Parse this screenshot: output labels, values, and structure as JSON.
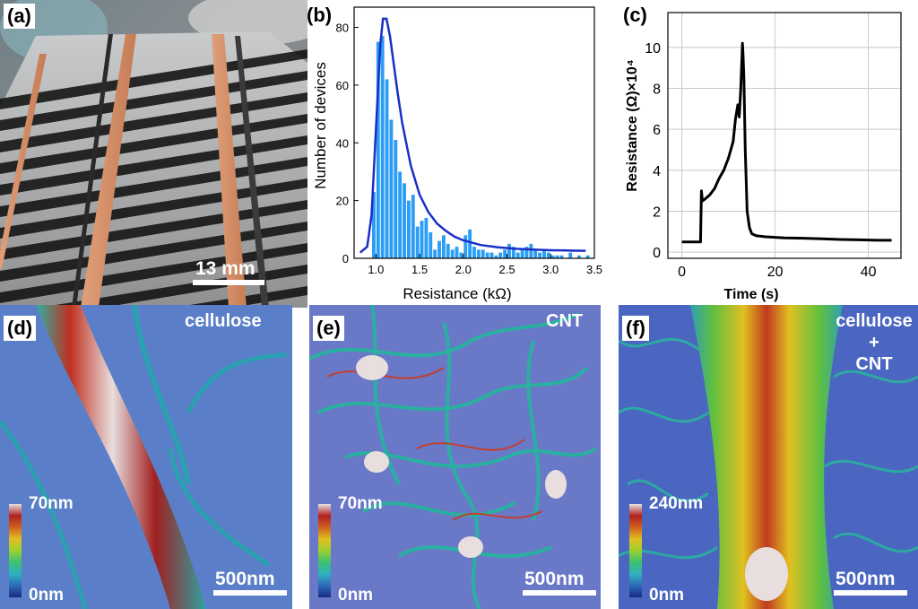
{
  "panels": {
    "a": {
      "label": "(a)",
      "scalebar": "13 mm"
    },
    "b": {
      "label": "(b)"
    },
    "c": {
      "label": "(c)"
    },
    "d": {
      "label": "(d)",
      "title": "cellulose",
      "cb_top": "70nm",
      "cb_bottom": "0nm",
      "scalebar": "500nm"
    },
    "e": {
      "label": "(e)",
      "title": "CNT",
      "cb_top": "70nm",
      "cb_bottom": "0nm",
      "scalebar": "500nm"
    },
    "f": {
      "label": "(f)",
      "title_lines": [
        "cellulose",
        "+",
        "CNT"
      ],
      "cb_top": "240nm",
      "cb_bottom": "0nm",
      "scalebar": "500nm"
    }
  },
  "chart_data": [
    {
      "type": "bar",
      "panel": "b",
      "xlabel": "Resistance (kΩ)",
      "ylabel": "Number of devices",
      "xlim": [
        0.75,
        3.5
      ],
      "ylim": [
        0,
        87
      ],
      "xticks": [
        "1.0",
        "1.5",
        "2.0",
        "2.5",
        "3.0",
        "3.5"
      ],
      "xtick_values": [
        1.0,
        1.5,
        2.0,
        2.5,
        3.0,
        3.5
      ],
      "yticks": [
        "0",
        "20",
        "40",
        "60",
        "80"
      ],
      "ytick_values": [
        0,
        20,
        40,
        60,
        80
      ],
      "bin_width": 0.05,
      "bin_starts": [
        0.95,
        1.0,
        1.05,
        1.1,
        1.15,
        1.2,
        1.25,
        1.3,
        1.35,
        1.4,
        1.45,
        1.5,
        1.55,
        1.6,
        1.65,
        1.7,
        1.75,
        1.8,
        1.85,
        1.9,
        1.95,
        2.0,
        2.05,
        2.1,
        2.15,
        2.2,
        2.25,
        2.3,
        2.35,
        2.4,
        2.45,
        2.5,
        2.55,
        2.6,
        2.65,
        2.7,
        2.75,
        2.8,
        2.85,
        2.9,
        2.95,
        3.0,
        3.05,
        3.1,
        3.15,
        3.2,
        3.25,
        3.3,
        3.35,
        3.4
      ],
      "values": [
        23,
        75,
        77,
        62,
        48,
        41,
        30,
        26,
        20,
        22,
        11,
        13,
        14,
        9,
        3,
        6,
        8,
        5,
        3,
        4,
        2,
        8,
        10,
        4,
        3,
        3,
        2,
        2,
        1,
        2,
        3,
        5,
        4,
        2,
        3,
        4,
        5,
        3,
        2,
        3,
        2,
        1,
        1,
        1,
        0,
        2,
        0,
        1,
        0,
        1
      ],
      "fit_curve": {
        "x": [
          0.82,
          0.9,
          0.95,
          1.0,
          1.05,
          1.08,
          1.12,
          1.16,
          1.2,
          1.25,
          1.3,
          1.4,
          1.5,
          1.6,
          1.7,
          1.8,
          1.9,
          2.0,
          2.2,
          2.4,
          2.6,
          2.8,
          3.0,
          3.2,
          3.4
        ],
        "y": [
          2,
          4,
          15,
          45,
          74,
          83,
          83,
          77,
          68,
          57,
          47,
          32,
          22,
          16,
          12,
          9.5,
          7.5,
          6.2,
          4.6,
          3.8,
          3.3,
          3.0,
          2.8,
          2.7,
          2.6
        ]
      },
      "colors": {
        "bars": "#2a9df4",
        "fit": "#1a2fc8"
      }
    },
    {
      "type": "line",
      "panel": "c",
      "xlabel": "Time (s)",
      "ylabel": "Resistance (Ω)×10⁴",
      "xlim": [
        -3,
        47
      ],
      "ylim": [
        -0.3,
        11.7
      ],
      "xticks": [
        "0",
        "20",
        "40"
      ],
      "xtick_values": [
        0,
        20,
        40
      ],
      "yticks": [
        "0",
        "2",
        "4",
        "6",
        "8",
        "10"
      ],
      "ytick_values": [
        0,
        2,
        4,
        6,
        8,
        10
      ],
      "grid": true,
      "x": [
        0,
        4,
        4.2,
        4.4,
        5,
        6,
        7,
        8,
        9,
        10,
        11,
        11.5,
        12,
        12.3,
        12.6,
        12.8,
        13,
        13.1,
        13.3,
        13.6,
        14,
        14.5,
        15,
        16,
        18,
        22,
        26,
        30,
        34,
        38,
        42,
        45
      ],
      "y": [
        0.5,
        0.5,
        3.0,
        2.5,
        2.6,
        2.8,
        3.1,
        3.6,
        4.0,
        4.6,
        5.4,
        6.5,
        7.2,
        6.6,
        7.8,
        9.0,
        10.2,
        9.8,
        8.5,
        5.0,
        2.0,
        1.2,
        0.9,
        0.8,
        0.75,
        0.7,
        0.68,
        0.65,
        0.62,
        0.6,
        0.58,
        0.58
      ],
      "colors": {
        "line": "#000000",
        "grid": "#c8c8c8"
      }
    }
  ]
}
